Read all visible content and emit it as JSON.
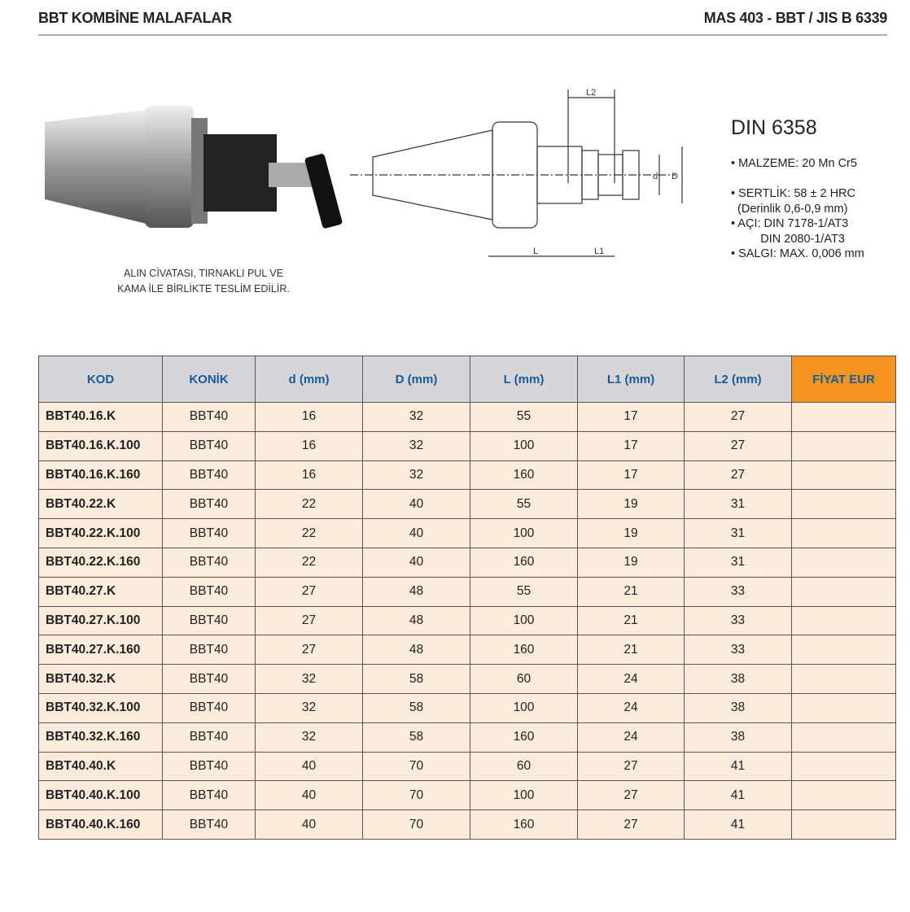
{
  "header": {
    "title": "BBT KOMBİNE MALAFALAR",
    "standard": "MAS 403 - BBT / JIS B 6339"
  },
  "caption": [
    "ALIN CİVATASI, TIRNAKLI PUL VE",
    "KAMA İLE BİRLİKTE TESLİM EDİLİR."
  ],
  "drawing_labels": {
    "l2": "L2",
    "l": "L",
    "l1": "L1",
    "d": "d",
    "D": "D"
  },
  "specs": {
    "title": "DIN 6358",
    "lines": [
      "• MALZEME: 20 Mn Cr5",
      "",
      "• SERTLİK: 58 ± 2 HRC",
      "  (Derinlik 0,6-0,9 mm)",
      "• AÇI: DIN 7178-1/AT3",
      "         DIN 2080-1/AT3",
      "• SALGI: MAX. 0,006 mm"
    ]
  },
  "colors": {
    "header_bg": "#d4d6d9",
    "header_text": "#1a5a9a",
    "row_bg": "#fbebdb",
    "price_header": "#f5951f"
  },
  "table": {
    "columns": [
      "KOD",
      "KONİK",
      "d (mm)",
      "D (mm)",
      "L (mm)",
      "L1  (mm)",
      "L2 (mm)",
      "FİYAT EUR"
    ],
    "rows": [
      [
        "BBT40.16.K",
        "BBT40",
        "16",
        "32",
        "55",
        "17",
        "27",
        ""
      ],
      [
        "BBT40.16.K.100",
        "BBT40",
        "16",
        "32",
        "100",
        "17",
        "27",
        ""
      ],
      [
        "BBT40.16.K.160",
        "BBT40",
        "16",
        "32",
        "160",
        "17",
        "27",
        ""
      ],
      [
        "BBT40.22.K",
        "BBT40",
        "22",
        "40",
        "55",
        "19",
        "31",
        ""
      ],
      [
        "BBT40.22.K.100",
        "BBT40",
        "22",
        "40",
        "100",
        "19",
        "31",
        ""
      ],
      [
        "BBT40.22.K.160",
        "BBT40",
        "22",
        "40",
        "160",
        "19",
        "31",
        ""
      ],
      [
        "BBT40.27.K",
        "BBT40",
        "27",
        "48",
        "55",
        "21",
        "33",
        ""
      ],
      [
        "BBT40.27.K.100",
        "BBT40",
        "27",
        "48",
        "100",
        "21",
        "33",
        ""
      ],
      [
        "BBT40.27.K.160",
        "BBT40",
        "27",
        "48",
        "160",
        "21",
        "33",
        ""
      ],
      [
        "BBT40.32.K",
        "BBT40",
        "32",
        "58",
        "60",
        "24",
        "38",
        ""
      ],
      [
        "BBT40.32.K.100",
        "BBT40",
        "32",
        "58",
        "100",
        "24",
        "38",
        ""
      ],
      [
        "BBT40.32.K.160",
        "BBT40",
        "32",
        "58",
        "160",
        "24",
        "38",
        ""
      ],
      [
        "BBT40.40.K",
        "BBT40",
        "40",
        "70",
        "60",
        "27",
        "41",
        ""
      ],
      [
        "BBT40.40.K.100",
        "BBT40",
        "40",
        "70",
        "100",
        "27",
        "41",
        ""
      ],
      [
        "BBT40.40.K.160",
        "BBT40",
        "40",
        "70",
        "160",
        "27",
        "41",
        ""
      ]
    ]
  }
}
